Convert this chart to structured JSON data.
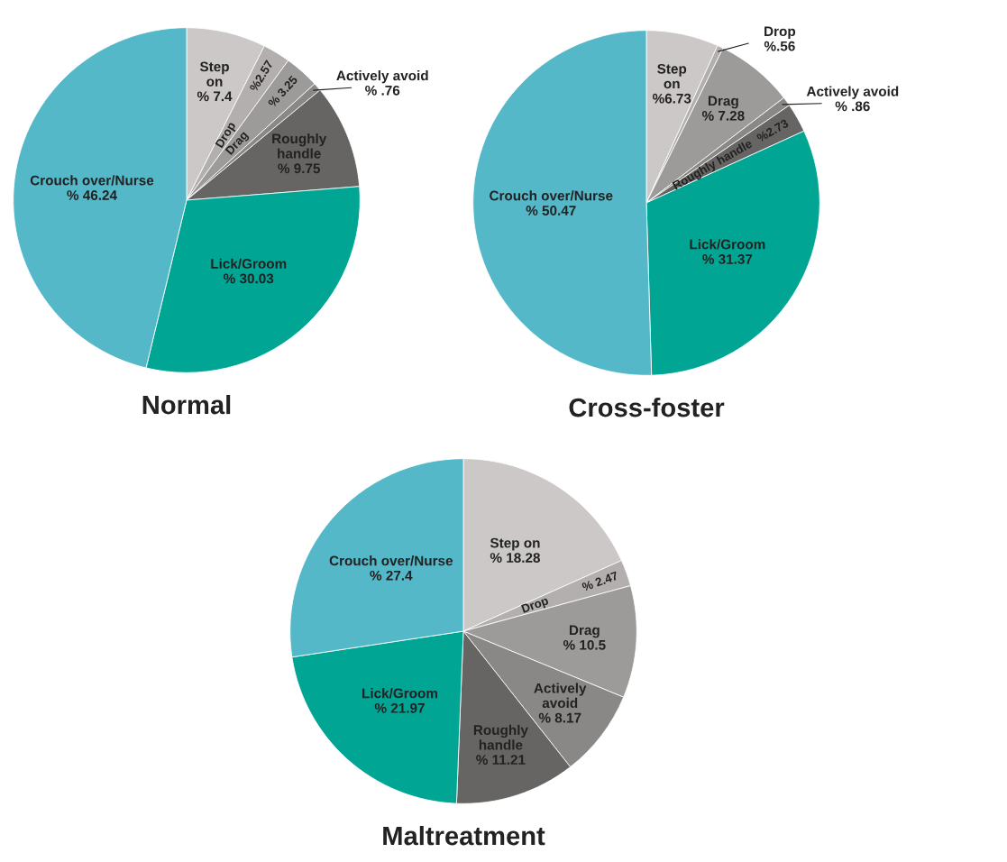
{
  "chart_data": [
    {
      "type": "pie",
      "title": "Normal",
      "categories": [
        "Step on",
        "Drop",
        "Drag",
        "Actively avoid",
        "Roughly handle",
        "Lick/Groom",
        "Crouch over/Nurse"
      ],
      "values": [
        7.4,
        2.57,
        3.25,
        0.76,
        9.75,
        30.03,
        46.24
      ],
      "value_labels": [
        "% 7.4",
        "%2.57",
        "% 3.25",
        "% .76",
        "% 9.75",
        "% 30.03",
        "% 46.24"
      ],
      "colors": [
        "#ccc8c8",
        "#b2afae",
        "#9d9b9a",
        "#8a8887",
        "#676563",
        "#00a594",
        "#54b8c8"
      ]
    },
    {
      "type": "pie",
      "title": "Cross-foster",
      "categories": [
        "Step on",
        "Drop",
        "Drag",
        "Actively avoid",
        "Roughly handle",
        "Lick/Groom",
        "Crouch over/Nurse"
      ],
      "values": [
        6.73,
        0.56,
        7.28,
        0.86,
        2.73,
        31.37,
        50.47
      ],
      "value_labels": [
        "%6.73",
        "%.56",
        "% 7.28",
        "% .86",
        "%2.73",
        "% 31.37",
        "% 50.47"
      ],
      "colors": [
        "#ccc8c8",
        "#b2afae",
        "#9d9b9a",
        "#8a8887",
        "#676563",
        "#00a594",
        "#54b8c8"
      ]
    },
    {
      "type": "pie",
      "title": "Maltreatment",
      "categories": [
        "Step on",
        "Drop",
        "Drag",
        "Actively avoid",
        "Roughly handle",
        "Lick/Groom",
        "Crouch over/Nurse"
      ],
      "values": [
        18.28,
        2.47,
        10.5,
        8.17,
        11.21,
        21.97,
        27.4
      ],
      "value_labels": [
        "% 18.28",
        "% 2.47",
        "% 10.5",
        "% 8.17",
        "% 11.21",
        "% 21.97",
        "% 27.4"
      ],
      "colors": [
        "#ccc8c8",
        "#b2afae",
        "#9d9b9a",
        "#8a8887",
        "#676563",
        "#00a594",
        "#54b8c8"
      ]
    }
  ]
}
